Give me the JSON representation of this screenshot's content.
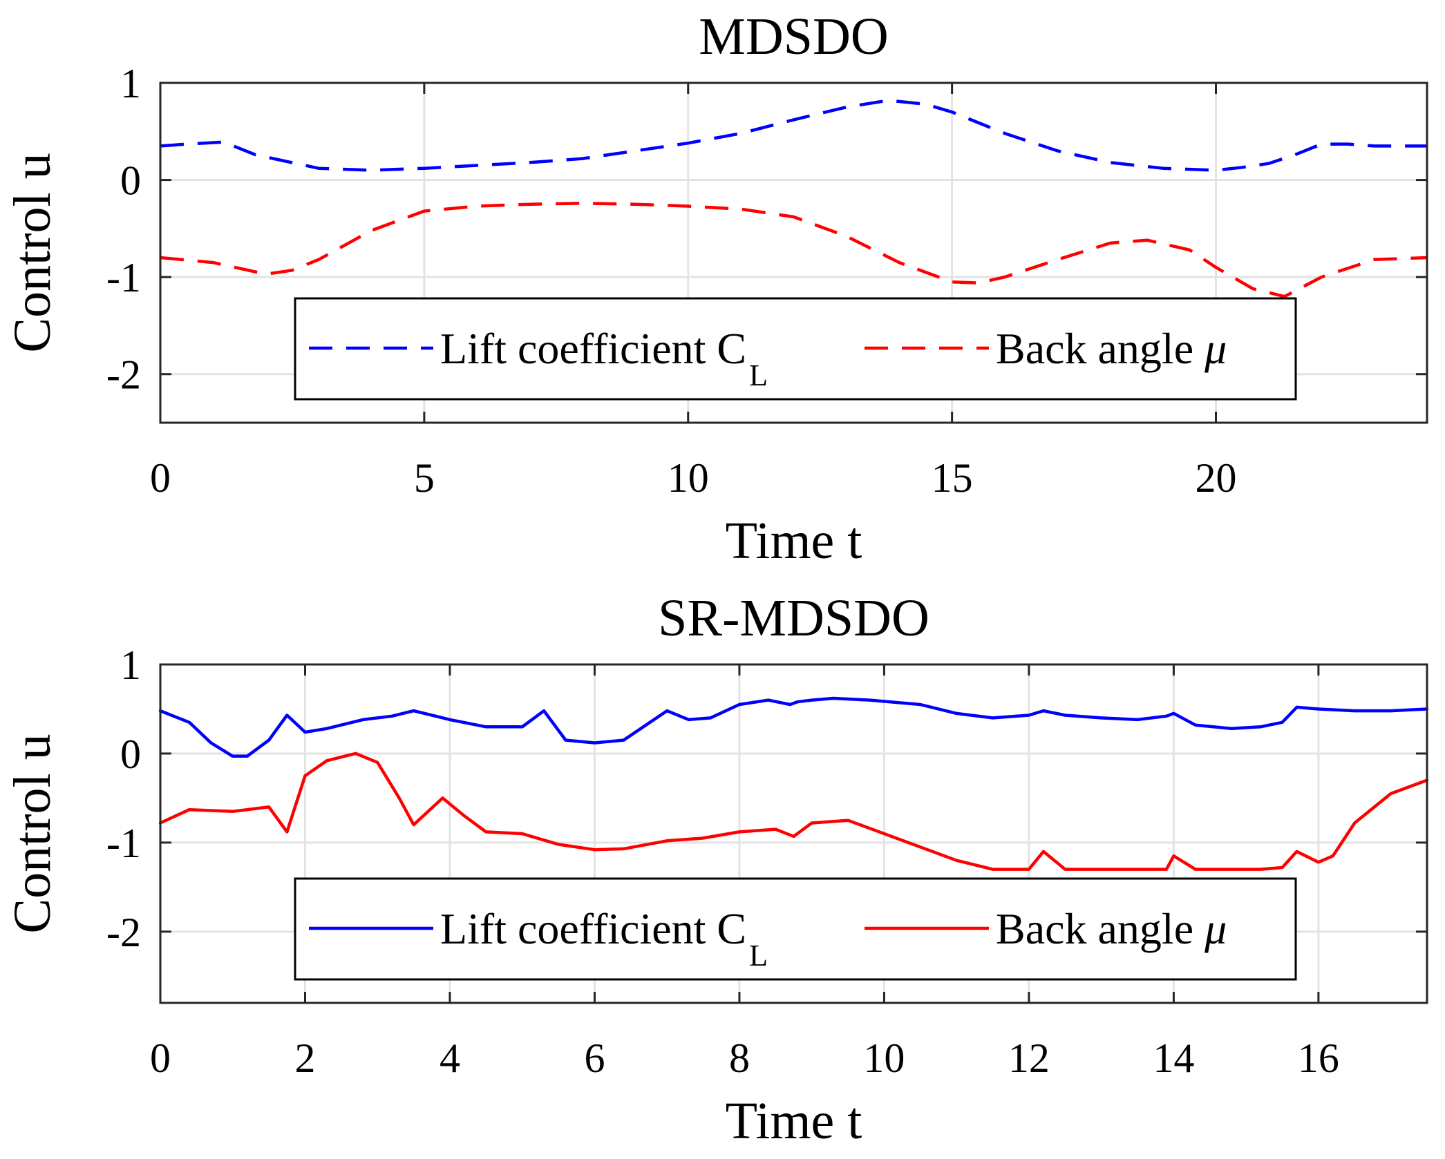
{
  "chart_data": [
    {
      "type": "line",
      "title": "MDSDO",
      "xlabel": "Time t",
      "ylabel": "Control u",
      "xlim": [
        0,
        24
      ],
      "ylim": [
        -2.5,
        1
      ],
      "xticks": [
        0,
        5,
        10,
        15,
        20
      ],
      "yticks": [
        1,
        0,
        -1,
        -2
      ],
      "grid": true,
      "legend_position": "lower-center",
      "legend": [
        {
          "text": "Lift coefficient C",
          "sub": "L"
        },
        {
          "text": "Back angle ",
          "symbol": "μ"
        }
      ],
      "series": [
        {
          "name": "Lift coefficient CL",
          "color": "#0000ff",
          "style": "dashed",
          "x": [
            0,
            0.5,
            1.2,
            1.8,
            3,
            4,
            5,
            6,
            7,
            8,
            9,
            10,
            11,
            12,
            13,
            13.8,
            14.5,
            15,
            16,
            17,
            18,
            19,
            20,
            20.5,
            21,
            21.5,
            22,
            22.5,
            23,
            24
          ],
          "y": [
            0.35,
            0.37,
            0.39,
            0.26,
            0.12,
            0.1,
            0.12,
            0.15,
            0.18,
            0.22,
            0.3,
            0.38,
            0.48,
            0.62,
            0.75,
            0.82,
            0.78,
            0.7,
            0.48,
            0.3,
            0.18,
            0.12,
            0.1,
            0.13,
            0.17,
            0.26,
            0.37,
            0.37,
            0.35,
            0.35
          ]
        },
        {
          "name": "Back angle μ",
          "color": "#ff0000",
          "style": "dashed",
          "x": [
            0,
            1,
            2,
            2.5,
            3,
            4,
            5,
            6,
            7,
            8,
            9,
            10,
            11,
            12,
            13,
            14,
            15,
            15.5,
            16,
            17,
            18,
            18.7,
            19.5,
            20,
            20.7,
            21.3,
            22,
            23,
            24
          ],
          "y": [
            -0.8,
            -0.85,
            -0.97,
            -0.93,
            -0.82,
            -0.52,
            -0.32,
            -0.27,
            -0.25,
            -0.24,
            -0.25,
            -0.27,
            -0.3,
            -0.38,
            -0.58,
            -0.85,
            -1.05,
            -1.06,
            -1.0,
            -0.82,
            -0.65,
            -0.62,
            -0.72,
            -0.9,
            -1.12,
            -1.2,
            -1.0,
            -0.82,
            -0.8
          ]
        }
      ]
    },
    {
      "type": "line",
      "title": "SR-MDSDO",
      "xlabel": "Time t",
      "ylabel": "Control u",
      "xlim": [
        0,
        17.5
      ],
      "ylim": [
        -2.8,
        1
      ],
      "xticks": [
        0,
        2,
        4,
        6,
        8,
        10,
        12,
        14,
        16
      ],
      "yticks": [
        1,
        0,
        -1,
        -2
      ],
      "grid": true,
      "legend_position": "lower-center",
      "legend": [
        {
          "text": "Lift coefficient C",
          "sub": "L"
        },
        {
          "text": "Back angle ",
          "symbol": "μ"
        }
      ],
      "series": [
        {
          "name": "Lift coefficient CL",
          "color": "#0000ff",
          "style": "solid",
          "x": [
            0,
            0.4,
            0.7,
            1.0,
            1.2,
            1.5,
            1.75,
            2.0,
            2.3,
            2.8,
            3.2,
            3.5,
            4.0,
            4.5,
            5.0,
            5.3,
            5.6,
            6.0,
            6.4,
            7.0,
            7.3,
            7.6,
            8.0,
            8.4,
            8.7,
            8.8,
            9.0,
            9.3,
            9.8,
            10.5,
            11.0,
            11.5,
            12.0,
            12.2,
            12.5,
            13.0,
            13.5,
            13.9,
            14.0,
            14.3,
            14.8,
            15.2,
            15.5,
            15.7,
            16.0,
            16.5,
            17.0,
            17.5
          ],
          "y": [
            0.48,
            0.35,
            0.12,
            -0.03,
            -0.03,
            0.15,
            0.43,
            0.24,
            0.28,
            0.38,
            0.42,
            0.48,
            0.38,
            0.3,
            0.3,
            0.48,
            0.15,
            0.12,
            0.15,
            0.48,
            0.38,
            0.4,
            0.55,
            0.6,
            0.55,
            0.58,
            0.6,
            0.62,
            0.6,
            0.55,
            0.45,
            0.4,
            0.43,
            0.48,
            0.43,
            0.4,
            0.38,
            0.42,
            0.45,
            0.32,
            0.28,
            0.3,
            0.35,
            0.52,
            0.5,
            0.48,
            0.48,
            0.5
          ]
        },
        {
          "name": "Back angle μ",
          "color": "#ff0000",
          "style": "solid",
          "x": [
            0,
            0.4,
            1.0,
            1.5,
            1.75,
            2.0,
            2.3,
            2.7,
            3.0,
            3.3,
            3.5,
            3.9,
            4.2,
            4.5,
            5.0,
            5.5,
            6.0,
            6.4,
            7.0,
            7.5,
            8.0,
            8.5,
            8.75,
            9.0,
            9.5,
            10.0,
            10.5,
            11.0,
            11.5,
            12.0,
            12.2,
            12.5,
            13.0,
            13.5,
            13.9,
            14.0,
            14.3,
            14.8,
            15.2,
            15.5,
            15.7,
            16.0,
            16.2,
            16.5,
            17.0,
            17.5
          ],
          "y": [
            -0.78,
            -0.63,
            -0.65,
            -0.6,
            -0.88,
            -0.25,
            -0.08,
            0.0,
            -0.1,
            -0.5,
            -0.8,
            -0.5,
            -0.7,
            -0.88,
            -0.9,
            -1.02,
            -1.08,
            -1.07,
            -0.98,
            -0.95,
            -0.88,
            -0.85,
            -0.93,
            -0.78,
            -0.75,
            -0.9,
            -1.05,
            -1.2,
            -1.3,
            -1.3,
            -1.1,
            -1.3,
            -1.3,
            -1.3,
            -1.3,
            -1.15,
            -1.3,
            -1.3,
            -1.3,
            -1.28,
            -1.1,
            -1.22,
            -1.15,
            -0.78,
            -0.45,
            -0.3
          ]
        }
      ]
    }
  ]
}
